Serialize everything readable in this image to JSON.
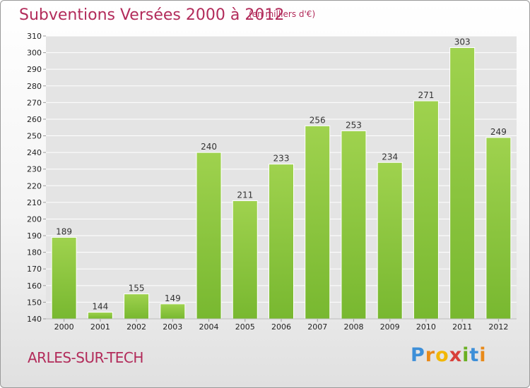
{
  "title": "Subventions Versées 2000 à 2012",
  "subtitle": "(en milliers d'€)",
  "commune": "ARLES-SUR-TECH",
  "logo": {
    "letters": [
      "P",
      "r",
      "o",
      "x",
      "i",
      "t",
      "i"
    ],
    "colors": [
      "#3d8fd8",
      "#e88a1a",
      "#f2b705",
      "#d8403a",
      "#6ab023",
      "#3d8fd8",
      "#e88a1a"
    ]
  },
  "colors": {
    "bar": "#78b830",
    "bar_light": "#9fd24e",
    "title": "#b22b5a",
    "grid": "#ffffff"
  },
  "chart_data": {
    "type": "bar",
    "title": "Subventions Versées 2000 à 2012",
    "subtitle": "(en milliers d'€)",
    "categories": [
      "2000",
      "2001",
      "2002",
      "2003",
      "2004",
      "2005",
      "2006",
      "2007",
      "2008",
      "2009",
      "2010",
      "2011",
      "2012"
    ],
    "values": [
      189,
      144,
      155,
      149,
      240,
      211,
      233,
      256,
      253,
      234,
      271,
      303,
      249
    ],
    "ylim": [
      140,
      310
    ],
    "yticks": [
      140,
      150,
      160,
      170,
      180,
      190,
      200,
      210,
      220,
      230,
      240,
      250,
      260,
      270,
      280,
      290,
      300,
      310
    ],
    "grid": true,
    "xlabel": "",
    "ylabel": ""
  }
}
